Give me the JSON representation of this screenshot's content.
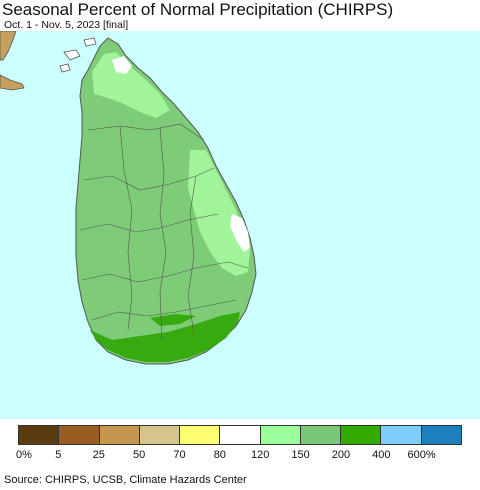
{
  "title": "Seasonal Percent of Normal Precipitation (CHIRPS)",
  "subtitle": "Oct. 1 - Nov. 5, 2023 [final]",
  "map": {
    "colors": {
      "ocean": "#ccffff",
      "india": "#c4a05c",
      "land_above_normal": "#7ecb78",
      "land_light_green": "#a3f59c",
      "land_dark_green": "#36aa0f",
      "land_white": "#ffffff",
      "boundary": "#555555"
    }
  },
  "legend": {
    "colors": [
      "#5a3c10",
      "#9a5c21",
      "#c49650",
      "#d5c58c",
      "#fefe72",
      "#ffffff",
      "#9bff99",
      "#78c878",
      "#33aa00",
      "#7fccff",
      "#1e7fbf"
    ],
    "labels": [
      "0%",
      "5",
      "25",
      "50",
      "70",
      "80",
      "120",
      "150",
      "200",
      "400",
      "600%"
    ]
  },
  "source": "Source: CHIRPS, UCSB, Climate Hazards Center"
}
